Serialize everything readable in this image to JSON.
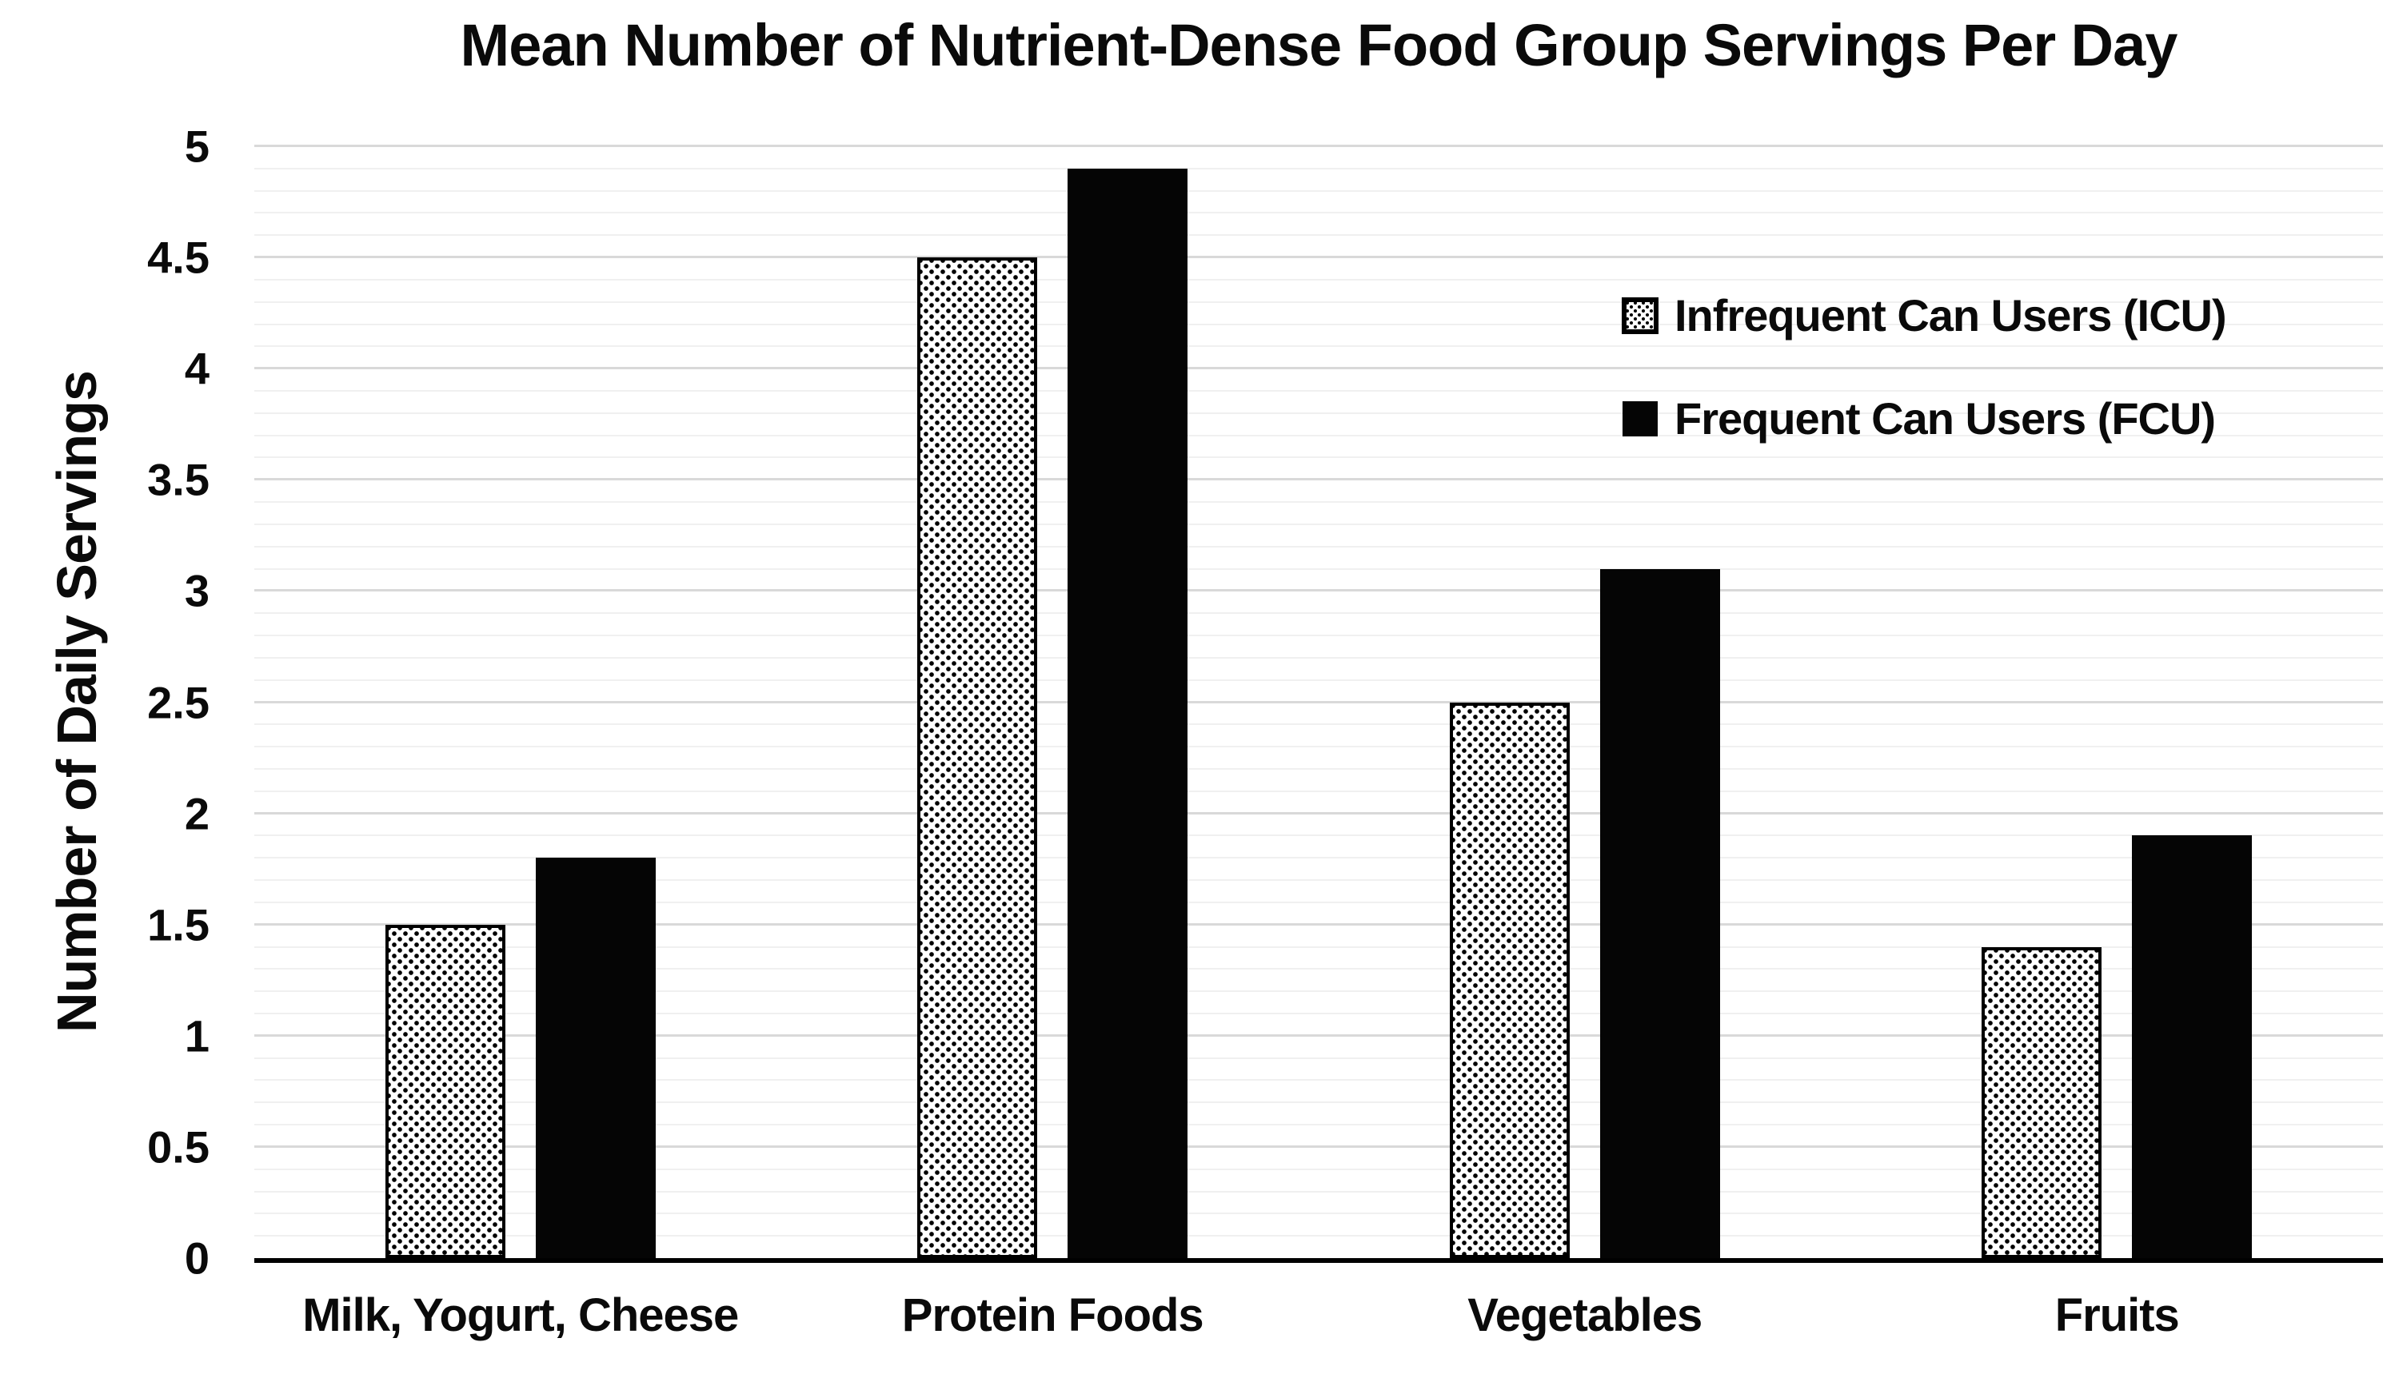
{
  "chart_data": {
    "type": "bar",
    "title": "Mean Number of Nutrient-Dense Food Group Servings Per Day",
    "xlabel": "",
    "ylabel": "Number of Daily Servings",
    "categories": [
      "Milk, Yogurt, Cheese",
      "Protein Foods",
      "Vegetables",
      "Fruits"
    ],
    "series": [
      {
        "name": "Infrequent Can Users (ICU)",
        "style": "dotted-pattern",
        "values": [
          1.5,
          4.5,
          2.5,
          1.4
        ]
      },
      {
        "name": "Frequent Can Users (FCU)",
        "style": "solid-black",
        "values": [
          1.8,
          4.9,
          3.1,
          1.9
        ]
      }
    ],
    "ylim": [
      0,
      5
    ],
    "y_major_step": 0.5,
    "y_minor_step": 0.1,
    "yticks": [
      "0",
      "0.5",
      "1",
      "1.5",
      "2",
      "2.5",
      "3",
      "3.5",
      "4",
      "4.5",
      "5"
    ],
    "grid": "horizontal",
    "legend_position": "upper-right",
    "colors": {
      "solid_bar": "#050505",
      "dotted_bar_bg": "#ffffff",
      "dotted_bar_dot": "#000000",
      "major_grid": "#d9d9d9",
      "minor_grid": "#f0f0f0",
      "axis_line": "#000000",
      "text": "#0a0a0a",
      "background": "#ffffff"
    }
  }
}
